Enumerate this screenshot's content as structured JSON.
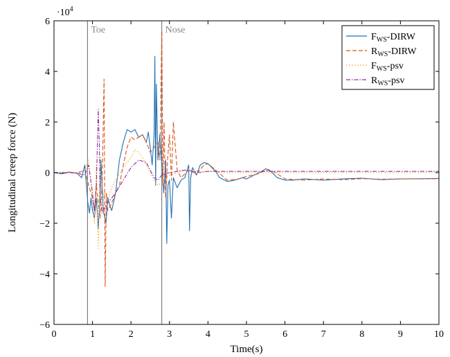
{
  "chart_data": {
    "type": "line",
    "title": "",
    "xlabel": "Time(s)",
    "ylabel": "Longitudinal creep force (N)",
    "y_multiplier_label": "·10",
    "y_multiplier_exponent": "4",
    "xlim": [
      0,
      10
    ],
    "ylim": [
      -6,
      6
    ],
    "x_ticks": [
      0,
      1,
      2,
      3,
      4,
      5,
      6,
      7,
      8,
      9,
      10
    ],
    "y_ticks": [
      -6,
      -4,
      -2,
      0,
      2,
      4,
      6
    ],
    "grid": false,
    "legend_position": "top-right",
    "annotations": [
      {
        "label": "Toe",
        "x": 0.87
      },
      {
        "label": "Nose",
        "x": 2.8
      }
    ],
    "series": [
      {
        "legend_main": "F",
        "legend_sub": "WS",
        "legend_suffix": "-DIRW",
        "color": "#1f6fb2",
        "dash": "solid",
        "x": [
          0,
          0.2,
          0.4,
          0.6,
          0.72,
          0.8,
          0.88,
          0.92,
          0.96,
          1.0,
          1.05,
          1.1,
          1.15,
          1.2,
          1.22,
          1.28,
          1.35,
          1.4,
          1.45,
          1.5,
          1.6,
          1.7,
          1.8,
          1.9,
          2.0,
          2.1,
          2.2,
          2.3,
          2.4,
          2.45,
          2.5,
          2.55,
          2.6,
          2.62,
          2.64,
          2.66,
          2.7,
          2.75,
          2.8,
          2.85,
          2.9,
          2.93,
          2.96,
          3.0,
          3.05,
          3.1,
          3.15,
          3.2,
          3.3,
          3.4,
          3.5,
          3.52,
          3.55,
          3.6,
          3.7,
          3.8,
          3.9,
          4.0,
          4.1,
          4.2,
          4.3,
          4.5,
          4.7,
          4.9,
          5.0,
          5.2,
          5.4,
          5.5,
          5.6,
          5.7,
          5.8,
          6.0,
          6.2,
          6.5,
          7.0,
          7.5,
          8.0,
          8.5,
          9.0,
          9.5,
          10.0
        ],
        "y": [
          0,
          -0.05,
          0.02,
          -0.03,
          -0.2,
          0.3,
          -1.2,
          -1.6,
          -1.0,
          -1.5,
          -1.8,
          -1.0,
          -2.2,
          -0.8,
          0.5,
          -1.5,
          -2.0,
          -1.0,
          -1.3,
          -1.5,
          -0.8,
          0.5,
          1.2,
          1.7,
          1.6,
          1.7,
          1.4,
          1.5,
          1.2,
          1.6,
          1.0,
          0.3,
          1.5,
          4.6,
          -0.5,
          3.5,
          0.5,
          1.5,
          0.3,
          -0.8,
          0.5,
          -2.8,
          -0.5,
          -0.3,
          -1.8,
          -0.2,
          -0.4,
          -0.6,
          -0.3,
          -0.2,
          0.3,
          -2.3,
          -0.2,
          0.2,
          -0.1,
          0.3,
          0.4,
          0.35,
          0.2,
          0.05,
          -0.2,
          -0.35,
          -0.3,
          -0.2,
          -0.25,
          -0.1,
          0.05,
          0.15,
          0.1,
          -0.05,
          -0.2,
          -0.3,
          -0.3,
          -0.25,
          -0.3,
          -0.25,
          -0.22,
          -0.28,
          -0.25,
          -0.24,
          -0.23
        ]
      },
      {
        "legend_main": "R",
        "legend_sub": "WS",
        "legend_suffix": "-DIRW",
        "color": "#d9541e",
        "dash": "6,3",
        "x": [
          0,
          0.2,
          0.4,
          0.6,
          0.8,
          0.9,
          1.0,
          1.05,
          1.1,
          1.15,
          1.2,
          1.25,
          1.3,
          1.33,
          1.36,
          1.4,
          1.5,
          1.6,
          1.7,
          1.8,
          1.9,
          2.0,
          2.1,
          2.2,
          2.3,
          2.4,
          2.5,
          2.6,
          2.7,
          2.75,
          2.8,
          2.83,
          2.86,
          2.9,
          2.95,
          3.0,
          3.05,
          3.1,
          3.2,
          3.3,
          3.5,
          3.7,
          3.9,
          4.0,
          4.2,
          4.5,
          4.8,
          5.0,
          5.3,
          5.5,
          5.7,
          6.0,
          6.5,
          7.0,
          7.5,
          8.0,
          8.5,
          9.0,
          9.5,
          10.0
        ],
        "y": [
          0,
          0.0,
          0.02,
          -0.02,
          0.1,
          -0.5,
          -1.0,
          -1.5,
          -0.5,
          -1.2,
          -1.8,
          -0.5,
          3.7,
          -4.5,
          -0.8,
          -1.5,
          -1.2,
          -0.8,
          -0.5,
          0.3,
          1.0,
          1.4,
          1.3,
          1.4,
          1.5,
          1.2,
          0.8,
          1.0,
          1.2,
          0.5,
          5.6,
          -0.5,
          2.0,
          -1.0,
          0.5,
          1.5,
          -0.3,
          2.0,
          0.1,
          -0.2,
          0.1,
          -0.05,
          0.3,
          0.35,
          0.1,
          -0.3,
          -0.25,
          -0.15,
          -0.05,
          0.1,
          0.05,
          -0.25,
          -0.3,
          -0.25,
          -0.28,
          -0.24,
          -0.26,
          -0.25,
          -0.25,
          -0.24
        ]
      },
      {
        "legend_main": "F",
        "legend_sub": "WS",
        "legend_suffix": "-psv",
        "color": "#f0a020",
        "dash": "1.5,2.5",
        "x": [
          0,
          0.2,
          0.4,
          0.6,
          0.8,
          0.9,
          1.0,
          1.05,
          1.1,
          1.15,
          1.2,
          1.25,
          1.3,
          1.4,
          1.5,
          1.6,
          1.8,
          2.0,
          2.1,
          2.2,
          2.3,
          2.4,
          2.5,
          2.6,
          2.7,
          2.8,
          2.9,
          3.0,
          3.2,
          3.4,
          3.6,
          3.8,
          4.0,
          4.5,
          5.0,
          5.5,
          6.0,
          7.0,
          8.0,
          9.0,
          10.0
        ],
        "y": [
          0,
          0.02,
          0.0,
          0.01,
          0.1,
          0.5,
          -1.0,
          -2.0,
          0.3,
          -3.0,
          0.6,
          -1.5,
          -0.8,
          -1.0,
          -0.6,
          -0.3,
          0.2,
          0.6,
          0.9,
          0.8,
          0.6,
          0.3,
          0.0,
          -0.3,
          -0.5,
          -0.4,
          -0.2,
          -0.1,
          0.0,
          0.1,
          0.1,
          0.05,
          0.05,
          0.0,
          0.0,
          0.0,
          0.0,
          0.0,
          0.0,
          0.0,
          0.0
        ]
      },
      {
        "legend_main": "R",
        "legend_sub": "WS",
        "legend_suffix": "-psv",
        "color": "#8a2e9e",
        "dash": "6,2,1.5,2",
        "x": [
          0,
          0.2,
          0.4,
          0.6,
          0.8,
          0.9,
          1.0,
          1.05,
          1.1,
          1.15,
          1.18,
          1.2,
          1.25,
          1.3,
          1.4,
          1.5,
          1.6,
          1.8,
          2.0,
          2.2,
          2.4,
          2.5,
          2.6,
          2.7,
          2.8,
          3.0,
          3.2,
          3.4,
          3.6,
          3.8,
          4.0,
          4.5,
          5.0,
          6.0,
          7.0,
          8.0,
          9.0,
          10.0
        ],
        "y": [
          0,
          -0.02,
          0.0,
          -0.02,
          -0.1,
          0.3,
          -0.8,
          -1.5,
          -0.5,
          2.5,
          1.0,
          -1.0,
          -1.6,
          -1.4,
          -1.2,
          -1.0,
          -0.8,
          -0.3,
          0.2,
          0.5,
          0.4,
          0.1,
          -0.2,
          -0.3,
          -0.1,
          0.0,
          0.05,
          0.1,
          0.05,
          0.0,
          0.05,
          0.05,
          0.05,
          0.05,
          0.05,
          0.05,
          0.05,
          0.05
        ]
      }
    ]
  }
}
